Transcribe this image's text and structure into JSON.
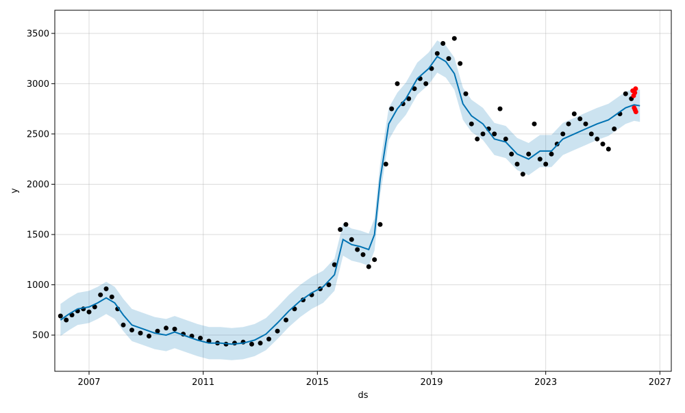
{
  "chart_data": {
    "type": "scatter",
    "title": "",
    "xlabel": "ds",
    "ylabel": "y",
    "xlim": [
      2005.8,
      2027.4
    ],
    "ylim": [
      140,
      3730
    ],
    "x_ticks": [
      2007,
      2011,
      2015,
      2019,
      2023,
      2027
    ],
    "y_ticks": [
      500,
      1000,
      1500,
      2000,
      2500,
      3000,
      3500
    ],
    "grid": true,
    "legend": "none",
    "colors": {
      "observed_points": "#000000",
      "highlight_points": "#ff0000",
      "forecast_line": "#0072b2",
      "uncertainty_band": "#0072b2"
    },
    "forecast": {
      "x": [
        2006.0,
        2006.3,
        2006.6,
        2007.0,
        2007.3,
        2007.6,
        2007.9,
        2008.2,
        2008.5,
        2008.9,
        2009.3,
        2009.7,
        2010.0,
        2010.4,
        2010.8,
        2011.2,
        2011.6,
        2012.0,
        2012.4,
        2012.8,
        2013.2,
        2013.6,
        2014.0,
        2014.4,
        2014.8,
        2015.2,
        2015.6,
        2015.9,
        2016.2,
        2016.5,
        2016.8,
        2017.0,
        2017.2,
        2017.5,
        2017.8,
        2018.1,
        2018.5,
        2018.9,
        2019.2,
        2019.5,
        2019.8,
        2020.1,
        2020.4,
        2020.8,
        2021.2,
        2021.6,
        2022.0,
        2022.4,
        2022.8,
        2023.2,
        2023.6,
        2024.0,
        2024.4,
        2024.8,
        2025.2,
        2025.5,
        2025.8,
        2026.1,
        2026.3
      ],
      "yhat": [
        650,
        710,
        760,
        780,
        820,
        870,
        820,
        700,
        600,
        560,
        520,
        500,
        530,
        490,
        450,
        420,
        420,
        410,
        420,
        450,
        510,
        620,
        740,
        840,
        920,
        980,
        1100,
        1450,
        1400,
        1380,
        1350,
        1500,
        2050,
        2600,
        2750,
        2850,
        3050,
        3150,
        3270,
        3220,
        3100,
        2800,
        2680,
        2600,
        2450,
        2420,
        2300,
        2250,
        2330,
        2330,
        2450,
        2500,
        2550,
        2600,
        2640,
        2700,
        2760,
        2790,
        2780
      ],
      "yhat_lower": [
        490,
        550,
        600,
        620,
        660,
        710,
        660,
        540,
        440,
        400,
        360,
        340,
        370,
        330,
        290,
        260,
        260,
        250,
        260,
        290,
        350,
        460,
        580,
        680,
        760,
        820,
        940,
        1290,
        1240,
        1220,
        1190,
        1340,
        1890,
        2440,
        2590,
        2690,
        2890,
        2990,
        3110,
        3060,
        2940,
        2640,
        2520,
        2440,
        2290,
        2260,
        2140,
        2090,
        2170,
        2170,
        2290,
        2340,
        2390,
        2440,
        2480,
        2540,
        2600,
        2630,
        2620
      ],
      "yhat_upper": [
        810,
        870,
        920,
        940,
        980,
        1030,
        980,
        860,
        760,
        720,
        680,
        660,
        690,
        650,
        610,
        580,
        580,
        570,
        580,
        610,
        670,
        780,
        900,
        1000,
        1080,
        1140,
        1260,
        1610,
        1560,
        1540,
        1510,
        1660,
        2210,
        2760,
        2910,
        3010,
        3210,
        3310,
        3430,
        3380,
        3260,
        2960,
        2840,
        2760,
        2610,
        2580,
        2460,
        2410,
        2490,
        2490,
        2610,
        2660,
        2710,
        2760,
        2800,
        2860,
        2920,
        2950,
        2940
      ]
    },
    "observed": {
      "x": [
        2006.0,
        2006.2,
        2006.4,
        2006.6,
        2006.8,
        2007.0,
        2007.2,
        2007.4,
        2007.6,
        2007.8,
        2008.0,
        2008.2,
        2008.5,
        2008.8,
        2009.1,
        2009.4,
        2009.7,
        2010.0,
        2010.3,
        2010.6,
        2010.9,
        2011.2,
        2011.5,
        2011.8,
        2012.1,
        2012.4,
        2012.7,
        2013.0,
        2013.3,
        2013.6,
        2013.9,
        2014.2,
        2014.5,
        2014.8,
        2015.1,
        2015.4,
        2015.6,
        2015.8,
        2016.0,
        2016.2,
        2016.4,
        2016.6,
        2016.8,
        2017.0,
        2017.2,
        2017.4,
        2017.6,
        2017.8,
        2018.0,
        2018.2,
        2018.4,
        2018.6,
        2018.8,
        2019.0,
        2019.2,
        2019.4,
        2019.6,
        2019.8,
        2020.0,
        2020.2,
        2020.4,
        2020.6,
        2020.8,
        2021.0,
        2021.2,
        2021.4,
        2021.6,
        2021.8,
        2022.0,
        2022.2,
        2022.4,
        2022.6,
        2022.8,
        2023.0,
        2023.2,
        2023.4,
        2023.6,
        2023.8,
        2024.0,
        2024.2,
        2024.4,
        2024.6,
        2024.8,
        2025.0,
        2025.2,
        2025.4,
        2025.6,
        2025.8,
        2026.0
      ],
      "y": [
        690,
        650,
        700,
        740,
        760,
        730,
        780,
        900,
        960,
        880,
        760,
        600,
        550,
        520,
        490,
        540,
        570,
        560,
        510,
        490,
        470,
        440,
        420,
        410,
        420,
        430,
        410,
        420,
        460,
        540,
        650,
        760,
        850,
        900,
        960,
        1000,
        1200,
        1550,
        1600,
        1450,
        1350,
        1300,
        1180,
        1250,
        1600,
        2200,
        2750,
        3000,
        2800,
        2850,
        2950,
        3050,
        3000,
        3150,
        3300,
        3400,
        3250,
        3450,
        3200,
        2900,
        2600,
        2450,
        2500,
        2550,
        2500,
        2750,
        2450,
        2300,
        2200,
        2100,
        2300,
        2600,
        2250,
        2200,
        2300,
        2400,
        2500,
        2600,
        2700,
        2650,
        2600,
        2500,
        2450,
        2400,
        2350,
        2550,
        2700,
        2900,
        2850
      ]
    },
    "highlight": {
      "x": [
        2026.05,
        2026.08,
        2026.12,
        2026.15,
        2026.1,
        2026.13,
        2026.16
      ],
      "y": [
        2930,
        2880,
        2910,
        2950,
        2760,
        2740,
        2720
      ]
    }
  }
}
